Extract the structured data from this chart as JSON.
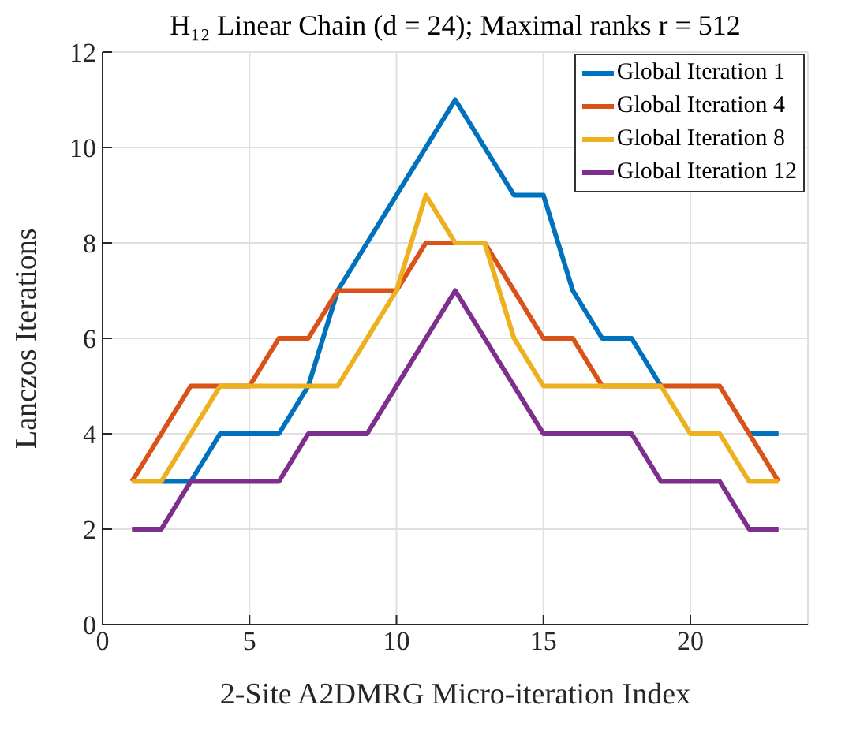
{
  "chart_data": {
    "type": "line",
    "title": "H₁₂ Linear Chain (d = 24); Maximal ranks r = 512",
    "xlabel": "2-Site A2DMRG Micro-iteration Index",
    "ylabel": "Lanczos Iterations",
    "x": [
      1,
      2,
      3,
      4,
      5,
      6,
      7,
      8,
      9,
      10,
      11,
      12,
      13,
      14,
      15,
      16,
      17,
      18,
      19,
      20,
      21,
      22,
      23
    ],
    "series": [
      {
        "name": "Global Iteration 1",
        "color": "#0072bd",
        "values": [
          null,
          3,
          3,
          4,
          4,
          4,
          5,
          7,
          8,
          9,
          10,
          11,
          10,
          9,
          9,
          7,
          6,
          6,
          5,
          null,
          null,
          4,
          4
        ]
      },
      {
        "name": "Global Iteration 4",
        "color": "#d95319",
        "values": [
          3,
          4,
          5,
          5,
          5,
          6,
          6,
          7,
          7,
          7,
          8,
          8,
          8,
          7,
          6,
          6,
          5,
          5,
          5,
          5,
          5,
          4,
          3
        ]
      },
      {
        "name": "Global Iteration 8",
        "color": "#edb120",
        "values": [
          3,
          3,
          4,
          5,
          5,
          5,
          5,
          5,
          6,
          7,
          9,
          8,
          8,
          6,
          5,
          5,
          5,
          5,
          5,
          4,
          4,
          3,
          3
        ]
      },
      {
        "name": "Global Iteration 12",
        "color": "#7e2f8e",
        "values": [
          2,
          2,
          3,
          3,
          3,
          3,
          4,
          4,
          4,
          5,
          6,
          7,
          6,
          5,
          4,
          4,
          4,
          4,
          3,
          3,
          3,
          2,
          2
        ]
      }
    ],
    "xlim": [
      0,
      24
    ],
    "xticks": [
      0,
      5,
      10,
      15,
      20
    ],
    "ylim": [
      0,
      12
    ],
    "yticks": [
      0,
      2,
      4,
      6,
      8,
      10,
      12
    ],
    "grid": true,
    "legend": "top right",
    "marker": "none",
    "line_style": "solid"
  }
}
